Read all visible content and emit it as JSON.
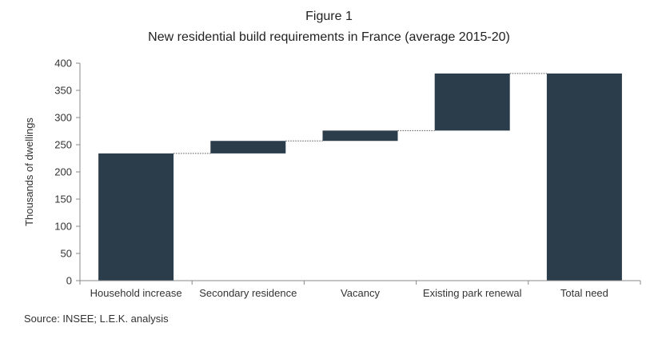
{
  "figure_label": "Figure 1",
  "source": "Source: INSEE; L.E.K. analysis",
  "chart_data": {
    "type": "bar",
    "subtype": "waterfall",
    "title": "New residential build requirements in France (average 2015-20)",
    "xlabel": "",
    "ylabel": "Thousands of dwellings",
    "ylim": [
      0,
      400
    ],
    "yticks": [
      0,
      50,
      100,
      150,
      200,
      250,
      300,
      350,
      400
    ],
    "categories": [
      "Household increase",
      "Secondary residence",
      "Vacancy",
      "Existing park renewal",
      "Total need"
    ],
    "bars": [
      {
        "category": "Household increase",
        "start": 0,
        "end": 234
      },
      {
        "category": "Secondary residence",
        "start": 234,
        "end": 257
      },
      {
        "category": "Vacancy",
        "start": 257,
        "end": 276
      },
      {
        "category": "Existing park renewal",
        "start": 276,
        "end": 381
      },
      {
        "category": "Total need",
        "start": 0,
        "end": 381
      }
    ],
    "values": [
      234,
      23,
      19,
      105,
      381
    ],
    "bar_color": "#2b3c4a",
    "grid": false,
    "connectors": "dotted"
  }
}
